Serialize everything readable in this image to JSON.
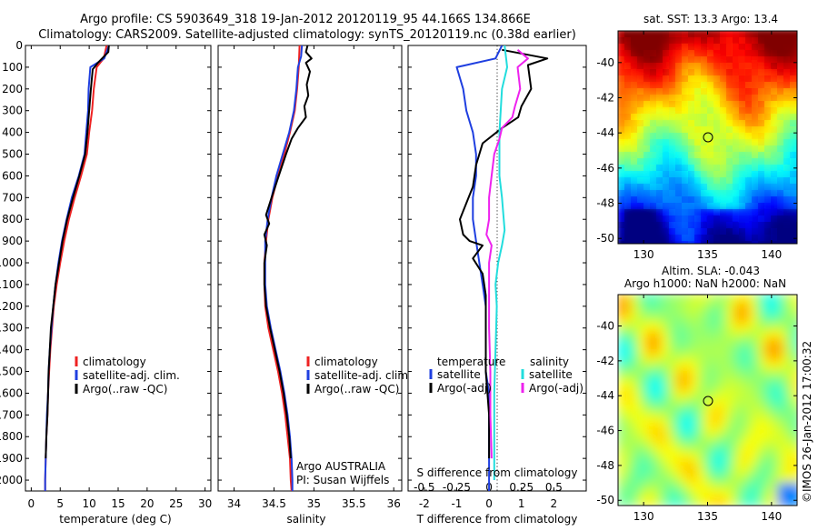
{
  "title_line1": "Argo profile: CS 5903649_318 19-Jan-2012 20120119_95 44.166S 134.866E",
  "title_line2": "Climatology: CARS2009. Satellite-adjusted climatology: synTS_20120119.nc (0.38d earlier)",
  "side_label": "©IMOS 26-Jan-2012 17:00:32",
  "colors": {
    "climatology": "#ee2222",
    "satellite": "#1f3fe0",
    "argo": "#000000",
    "s_satellite": "#22dddd",
    "s_argo": "#ee22ee"
  },
  "chart_data": [
    {
      "type": "line",
      "name": "temperature",
      "xlabel": "temperature (deg C)",
      "xlim": [
        -1,
        31
      ],
      "xticks": [
        0,
        5,
        10,
        15,
        20,
        25,
        30
      ],
      "ylim": [
        2050,
        0
      ],
      "yticks": [
        0,
        100,
        200,
        300,
        400,
        500,
        600,
        700,
        800,
        900,
        1000,
        1100,
        1200,
        1300,
        1400,
        1500,
        1600,
        1700,
        1800,
        1900,
        2000
      ],
      "legend": {
        "entries": [
          "climatology",
          "satellite-adj. clim.",
          "Argo(..raw -QC)"
        ]
      },
      "series": [
        {
          "name": "climatology",
          "color_key": "climatology",
          "points": [
            [
              13.0,
              0
            ],
            [
              12.5,
              60
            ],
            [
              11.3,
              100
            ],
            [
              10.8,
              200
            ],
            [
              10.5,
              300
            ],
            [
              10.0,
              400
            ],
            [
              9.6,
              500
            ],
            [
              8.6,
              600
            ],
            [
              7.5,
              700
            ],
            [
              6.5,
              800
            ],
            [
              5.7,
              900
            ],
            [
              5.0,
              1000
            ],
            [
              4.4,
              1100
            ],
            [
              3.9,
              1200
            ],
            [
              3.6,
              1300
            ],
            [
              3.3,
              1400
            ],
            [
              3.1,
              1500
            ],
            [
              2.9,
              1600
            ],
            [
              2.8,
              1700
            ],
            [
              2.6,
              1800
            ],
            [
              2.5,
              1900
            ],
            [
              2.4,
              2000
            ],
            [
              2.4,
              2050
            ]
          ]
        },
        {
          "name": "satellite-adj. clim.",
          "color_key": "satellite",
          "points": [
            [
              13.4,
              0
            ],
            [
              12.6,
              60
            ],
            [
              10.2,
              100
            ],
            [
              9.9,
              200
            ],
            [
              9.8,
              300
            ],
            [
              9.5,
              400
            ],
            [
              9.2,
              500
            ],
            [
              8.2,
              600
            ],
            [
              7.0,
              700
            ],
            [
              6.1,
              800
            ],
            [
              5.3,
              900
            ],
            [
              4.7,
              1000
            ],
            [
              4.2,
              1100
            ],
            [
              3.8,
              1200
            ],
            [
              3.5,
              1300
            ],
            [
              3.2,
              1400
            ],
            [
              3.0,
              1500
            ],
            [
              2.9,
              1600
            ],
            [
              2.7,
              1700
            ],
            [
              2.6,
              1800
            ],
            [
              2.5,
              1900
            ],
            [
              2.4,
              2000
            ],
            [
              2.4,
              2050
            ]
          ]
        },
        {
          "name": "Argo(..raw -QC)",
          "color_key": "argo",
          "points": [
            [
              13.4,
              0
            ],
            [
              13.3,
              30
            ],
            [
              11.5,
              80
            ],
            [
              10.6,
              110
            ],
            [
              10.3,
              200
            ],
            [
              10.0,
              300
            ],
            [
              9.7,
              400
            ],
            [
              9.3,
              500
            ],
            [
              8.3,
              600
            ],
            [
              7.2,
              700
            ],
            [
              6.2,
              800
            ],
            [
              5.4,
              900
            ],
            [
              4.8,
              1000
            ],
            [
              4.2,
              1100
            ],
            [
              3.8,
              1200
            ],
            [
              3.4,
              1300
            ],
            [
              3.2,
              1400
            ],
            [
              3.0,
              1500
            ],
            [
              2.9,
              1600
            ],
            [
              2.8,
              1700
            ],
            [
              2.6,
              1800
            ],
            [
              2.5,
              1900
            ]
          ]
        }
      ]
    },
    {
      "type": "line",
      "name": "salinity",
      "xlabel": "salinity",
      "xlim": [
        33.8,
        36.1
      ],
      "xticks": [
        34,
        34.5,
        35,
        35.5,
        36
      ],
      "ylim": [
        2050,
        0
      ],
      "legend": {
        "entries": [
          "climatology",
          "satellite-adj. clim.",
          "Argo(..raw -QC)"
        ]
      },
      "annotation": [
        "Argo AUSTRALIA",
        "PI: Susan Wijffels"
      ],
      "series": [
        {
          "name": "climatology",
          "color_key": "climatology",
          "points": [
            [
              34.82,
              0
            ],
            [
              34.81,
              100
            ],
            [
              34.79,
              200
            ],
            [
              34.76,
              300
            ],
            [
              34.7,
              400
            ],
            [
              34.63,
              500
            ],
            [
              34.55,
              600
            ],
            [
              34.48,
              700
            ],
            [
              34.43,
              800
            ],
            [
              34.4,
              900
            ],
            [
              34.38,
              1000
            ],
            [
              34.38,
              1100
            ],
            [
              34.39,
              1200
            ],
            [
              34.43,
              1300
            ],
            [
              34.49,
              1400
            ],
            [
              34.55,
              1500
            ],
            [
              34.6,
              1600
            ],
            [
              34.64,
              1700
            ],
            [
              34.67,
              1800
            ],
            [
              34.7,
              1900
            ],
            [
              34.71,
              2000
            ],
            [
              34.72,
              2050
            ]
          ]
        },
        {
          "name": "satellite-adj. clim.",
          "color_key": "satellite",
          "points": [
            [
              34.85,
              0
            ],
            [
              34.84,
              50
            ],
            [
              34.8,
              100
            ],
            [
              34.78,
              200
            ],
            [
              34.75,
              300
            ],
            [
              34.69,
              400
            ],
            [
              34.61,
              500
            ],
            [
              34.53,
              600
            ],
            [
              34.47,
              700
            ],
            [
              34.42,
              800
            ],
            [
              34.39,
              900
            ],
            [
              34.39,
              1000
            ],
            [
              34.39,
              1100
            ],
            [
              34.41,
              1200
            ],
            [
              34.46,
              1300
            ],
            [
              34.52,
              1400
            ],
            [
              34.58,
              1500
            ],
            [
              34.63,
              1600
            ],
            [
              34.67,
              1700
            ],
            [
              34.7,
              1800
            ],
            [
              34.72,
              1900
            ],
            [
              34.73,
              2000
            ],
            [
              34.73,
              2050
            ]
          ]
        },
        {
          "name": "Argo(..raw -QC)",
          "color_key": "argo",
          "points": [
            [
              34.92,
              0
            ],
            [
              34.9,
              30
            ],
            [
              34.97,
              60
            ],
            [
              34.9,
              80
            ],
            [
              34.95,
              120
            ],
            [
              34.91,
              180
            ],
            [
              34.93,
              230
            ],
            [
              34.88,
              280
            ],
            [
              34.9,
              330
            ],
            [
              34.8,
              380
            ],
            [
              34.72,
              430
            ],
            [
              34.65,
              500
            ],
            [
              34.56,
              600
            ],
            [
              34.47,
              700
            ],
            [
              34.4,
              780
            ],
            [
              34.44,
              820
            ],
            [
              34.38,
              870
            ],
            [
              34.41,
              920
            ],
            [
              34.38,
              1000
            ],
            [
              34.38,
              1100
            ],
            [
              34.4,
              1200
            ],
            [
              34.45,
              1300
            ],
            [
              34.51,
              1400
            ],
            [
              34.57,
              1500
            ],
            [
              34.62,
              1600
            ],
            [
              34.66,
              1700
            ],
            [
              34.69,
              1800
            ],
            [
              34.71,
              1900
            ]
          ]
        }
      ]
    },
    {
      "type": "line",
      "name": "difference",
      "xlabel_bottom": "T difference from climatology",
      "xlabel_top": "S difference from climatology",
      "xlim": [
        -2.5,
        3
      ],
      "xticks_T": [
        -2,
        -1,
        0,
        1,
        2
      ],
      "xticks_S": [
        "-0.5",
        "-0.25",
        "0",
        "0.25",
        "0.5"
      ],
      "ylim": [
        2050,
        0
      ],
      "legend": {
        "temperature_header": "temperature",
        "salinity_header": "salinity",
        "entries": [
          "satellite",
          "Argo(-adj)",
          "satellite",
          "Argo(-adj)"
        ]
      },
      "series": [
        {
          "name": "temperature satellite",
          "color_key": "satellite",
          "points": [
            [
              0.4,
              0
            ],
            [
              0.2,
              60
            ],
            [
              -1.0,
              100
            ],
            [
              -0.8,
              200
            ],
            [
              -0.7,
              300
            ],
            [
              -0.5,
              400
            ],
            [
              -0.4,
              500
            ],
            [
              -0.4,
              600
            ],
            [
              -0.5,
              700
            ],
            [
              -0.5,
              800
            ],
            [
              -0.4,
              900
            ],
            [
              -0.3,
              1000
            ],
            [
              -0.2,
              1100
            ],
            [
              -0.1,
              1200
            ],
            [
              -0.1,
              1300
            ],
            [
              -0.1,
              1400
            ],
            [
              -0.1,
              1500
            ],
            [
              0,
              1600
            ],
            [
              0,
              1800
            ],
            [
              0,
              2000
            ],
            [
              0,
              2050
            ]
          ]
        },
        {
          "name": "temperature Argo(-adj)",
          "color_key": "argo",
          "points": [
            [
              0.4,
              20
            ],
            [
              1.8,
              60
            ],
            [
              1.2,
              90
            ],
            [
              1.3,
              200
            ],
            [
              1.0,
              280
            ],
            [
              0.9,
              330
            ],
            [
              0.4,
              380
            ],
            [
              -0.2,
              450
            ],
            [
              -0.4,
              550
            ],
            [
              -0.5,
              650
            ],
            [
              -0.9,
              800
            ],
            [
              -0.8,
              870
            ],
            [
              -0.6,
              900
            ],
            [
              -0.2,
              920
            ],
            [
              -0.5,
              980
            ],
            [
              -0.2,
              1050
            ],
            [
              -0.1,
              1150
            ],
            [
              -0.1,
              1300
            ],
            [
              -0.1,
              1500
            ],
            [
              0,
              1700
            ],
            [
              0,
              1900
            ]
          ]
        },
        {
          "name": "salinity satellite",
          "color_key": "s_satellite",
          "points": [
            [
              0.12,
              0
            ],
            [
              0.14,
              100
            ],
            [
              0.1,
              200
            ],
            [
              0.09,
              300
            ],
            [
              0.08,
              400
            ],
            [
              0.08,
              600
            ],
            [
              0.1,
              700
            ],
            [
              0.12,
              850
            ],
            [
              0.1,
              920
            ],
            [
              0.07,
              1000
            ],
            [
              0.05,
              1100
            ],
            [
              0.06,
              1200
            ],
            [
              0.05,
              1400
            ],
            [
              0.04,
              1600
            ],
            [
              0.04,
              1800
            ],
            [
              0.04,
              2000
            ]
          ]
        },
        {
          "name": "salinity Argo(-adj)",
          "color_key": "s_argo",
          "points": [
            [
              0.22,
              20
            ],
            [
              0.3,
              60
            ],
            [
              0.22,
              100
            ],
            [
              0.24,
              200
            ],
            [
              0.2,
              280
            ],
            [
              0.18,
              330
            ],
            [
              0.1,
              380
            ],
            [
              0.08,
              430
            ],
            [
              0.04,
              500
            ],
            [
              0.02,
              600
            ],
            [
              0.0,
              700
            ],
            [
              0.0,
              800
            ],
            [
              -0.02,
              870
            ],
            [
              0.02,
              920
            ],
            [
              0.0,
              1000
            ],
            [
              0.0,
              1100
            ],
            [
              0.0,
              1300
            ],
            [
              0.01,
              1500
            ],
            [
              0.01,
              1700
            ],
            [
              0.02,
              1900
            ]
          ]
        }
      ]
    },
    {
      "type": "heatmap",
      "name": "sst-map",
      "title": "sat. SST: 13.3 Argo: 13.4",
      "xlim": [
        128,
        142
      ],
      "ylim": [
        -50.3,
        -38.2
      ],
      "xticks": [
        130,
        135,
        140
      ],
      "yticks": [
        -40,
        -42,
        -44,
        -46,
        -48,
        -50
      ],
      "marker": {
        "lon": 134.866,
        "lat": -44.166
      }
    },
    {
      "type": "heatmap",
      "name": "sla-map",
      "title_line1": "Altim. SLA: -0.043",
      "title_line2": "Argo h1000: NaN h2000: NaN",
      "xlim": [
        128,
        142
      ],
      "ylim": [
        -50.3,
        -38.2
      ],
      "xticks": [
        130,
        135,
        140
      ],
      "yticks": [
        -40,
        -42,
        -44,
        -46,
        -48,
        -50
      ],
      "marker": {
        "lon": 134.866,
        "lat": -44.166
      }
    }
  ]
}
